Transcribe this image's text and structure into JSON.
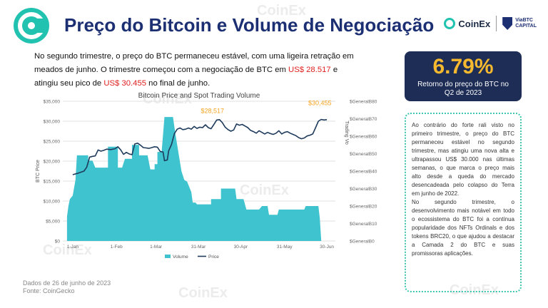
{
  "header": {
    "title": "Preço do Bitcoin e Volume de Negociação",
    "brand_coinex": "CoinEx",
    "brand_viabtc_line1": "ViaBTC",
    "brand_viabtc_line2": "CAPITAL"
  },
  "intro": {
    "part1": "No segundo trimestre, o preço do BTC permaneceu estável, com uma ligeira retração em meados de junho. O trimestre começou com a negociação de BTC em ",
    "low": "US$ 28.517",
    "part2": " e atingiu seu pico de ",
    "high": "US$ 30.455",
    "part3": " no final de junho."
  },
  "kpi": {
    "value": "6.79%",
    "label": "Retorno do preço do BTC no Q2 de 2023"
  },
  "side": {
    "para1": "Ao contrário do forte rali visto no primeiro trimestre, o preço do BTC permaneceu estável no segundo trimestre, mas atingiu uma nova alta e ultrapassou US$ 30.000 nas últimas semanas, o que marca o preço mais alto desde a queda do mercado desencadeada pelo colapso do Terra em junho de 2022.",
    "para2": "No segundo trimestre, o desenvolvimento mais notável em todo o ecossistema do BTC foi a contínua popularidade dos NFTs Ordinals e dos tokens BRC20, o que ajudou a destacar a Camada 2 do BTC e suas promissoras aplicações."
  },
  "footer": {
    "date": "Dados de 26 de junho de 2023",
    "source": "Fonte: CoinGecko"
  },
  "watermark": "CoinEx",
  "colors": {
    "title": "#1c2f73",
    "volume": "#3fc3cf",
    "price": "#1f3b5c",
    "annotation": "#f5a623",
    "kpi_bg": "#1d2d55",
    "kpi_value": "#f5b82e",
    "highlight": "#e02020",
    "side_border": "#3cc6b0"
  },
  "chart_data": {
    "type": "bar",
    "title": "Bitcoin Price and Spot Trading Volume",
    "ylabel": "BTC Price",
    "y2label": "Trading Vo",
    "ylim": [
      0,
      35000
    ],
    "y2lim": [
      0,
      80
    ],
    "yticks": [
      "$0",
      "$5,000",
      "$10,000",
      "$15,000",
      "$20,000",
      "$25,000",
      "$30,000",
      "$35,000"
    ],
    "y2ticks": [
      "$GeneralB0",
      "$GeneralB10",
      "$GeneralB20",
      "$GeneralB30",
      "$GeneralB40",
      "$GeneralB50",
      "$GeneralB60",
      "$GeneralB70",
      "$GeneralB80"
    ],
    "xrange": [
      -7,
      186
    ],
    "xticks": [
      {
        "label": "1-Jan",
        "day": 0
      },
      {
        "label": "1-Feb",
        "day": 31
      },
      {
        "label": "1-Mar",
        "day": 59
      },
      {
        "label": "31-Mar",
        "day": 89
      },
      {
        "label": "30-Apr",
        "day": 119
      },
      {
        "label": "31-May",
        "day": 150
      },
      {
        "label": "30-Jun",
        "day": 180
      }
    ],
    "legend": [
      "Volume",
      "Price"
    ],
    "legend_position": "bottom",
    "grid": true,
    "annotations": [
      {
        "text": "$30,455",
        "day": 175,
        "value": 30455
      },
      {
        "text": "$28,517",
        "day": 99,
        "value": 28517
      }
    ],
    "series": [
      {
        "name": "Volume",
        "axis": "right",
        "style": "area",
        "points": [
          [
            -4,
            0
          ],
          [
            -4,
            14
          ],
          [
            -3,
            20
          ],
          [
            -2,
            24
          ],
          [
            0,
            26
          ],
          [
            2,
            35
          ],
          [
            3,
            49
          ],
          [
            11,
            49
          ],
          [
            11,
            46
          ],
          [
            14,
            46
          ],
          [
            16,
            42
          ],
          [
            25,
            42
          ],
          [
            25,
            54
          ],
          [
            32,
            54
          ],
          [
            32,
            42
          ],
          [
            35,
            42
          ],
          [
            37,
            47
          ],
          [
            42,
            47
          ],
          [
            42,
            55
          ],
          [
            47,
            55
          ],
          [
            47,
            49
          ],
          [
            53,
            49
          ],
          [
            55,
            41
          ],
          [
            58,
            41
          ],
          [
            58,
            44
          ],
          [
            60,
            44
          ],
          [
            60,
            51
          ],
          [
            63,
            51
          ],
          [
            65,
            71
          ],
          [
            71,
            71
          ],
          [
            73,
            60
          ],
          [
            75,
            50
          ],
          [
            77,
            40
          ],
          [
            79,
            35
          ],
          [
            81,
            34
          ],
          [
            84,
            28
          ],
          [
            85,
            22
          ],
          [
            87,
            22
          ],
          [
            88,
            21
          ],
          [
            98,
            21
          ],
          [
            98,
            24
          ],
          [
            105,
            24
          ],
          [
            105,
            30
          ],
          [
            115,
            30
          ],
          [
            116,
            24
          ],
          [
            121,
            24
          ],
          [
            123,
            18
          ],
          [
            132,
            18
          ],
          [
            134,
            20
          ],
          [
            138,
            20
          ],
          [
            139,
            15
          ],
          [
            145,
            15
          ],
          [
            146,
            18
          ],
          [
            164,
            18
          ],
          [
            165,
            20
          ],
          [
            174,
            20
          ],
          [
            175,
            13
          ],
          [
            176,
            0
          ]
        ]
      },
      {
        "name": "Price",
        "axis": "left",
        "style": "line",
        "points": [
          [
            0,
            16600
          ],
          [
            4,
            17000
          ],
          [
            8,
            17500
          ],
          [
            10,
            18500
          ],
          [
            12,
            21000
          ],
          [
            14,
            21200
          ],
          [
            16,
            21300
          ],
          [
            18,
            22800
          ],
          [
            20,
            22500
          ],
          [
            22,
            22700
          ],
          [
            24,
            23000
          ],
          [
            27,
            22900
          ],
          [
            30,
            23100
          ],
          [
            32,
            23600
          ],
          [
            34,
            22800
          ],
          [
            36,
            21700
          ],
          [
            38,
            22200
          ],
          [
            40,
            21800
          ],
          [
            42,
            21600
          ],
          [
            44,
            24300
          ],
          [
            46,
            24500
          ],
          [
            48,
            24000
          ],
          [
            50,
            23400
          ],
          [
            52,
            23300
          ],
          [
            54,
            23200
          ],
          [
            56,
            23400
          ],
          [
            58,
            23600
          ],
          [
            60,
            23500
          ],
          [
            62,
            22400
          ],
          [
            64,
            22300
          ],
          [
            65,
            20100
          ],
          [
            67,
            20300
          ],
          [
            68,
            22600
          ],
          [
            70,
            24200
          ],
          [
            72,
            26900
          ],
          [
            74,
            28000
          ],
          [
            76,
            28300
          ],
          [
            78,
            27900
          ],
          [
            80,
            28000
          ],
          [
            82,
            28300
          ],
          [
            84,
            28000
          ],
          [
            86,
            28700
          ],
          [
            88,
            28200
          ],
          [
            90,
            28500
          ],
          [
            92,
            28400
          ],
          [
            94,
            29100
          ],
          [
            96,
            28400
          ],
          [
            98,
            28100
          ],
          [
            100,
            29200
          ],
          [
            102,
            30300
          ],
          [
            104,
            30400
          ],
          [
            106,
            29600
          ],
          [
            108,
            28500
          ],
          [
            110,
            27900
          ],
          [
            112,
            27500
          ],
          [
            114,
            27800
          ],
          [
            116,
            29300
          ],
          [
            118,
            29000
          ],
          [
            120,
            29200
          ],
          [
            122,
            28800
          ],
          [
            124,
            28400
          ],
          [
            126,
            27700
          ],
          [
            128,
            27400
          ],
          [
            130,
            27000
          ],
          [
            132,
            27600
          ],
          [
            134,
            27200
          ],
          [
            136,
            26800
          ],
          [
            138,
            27200
          ],
          [
            140,
            26900
          ],
          [
            142,
            26700
          ],
          [
            144,
            27000
          ],
          [
            146,
            27600
          ],
          [
            148,
            26800
          ],
          [
            150,
            27200
          ],
          [
            152,
            27400
          ],
          [
            154,
            27000
          ],
          [
            156,
            26700
          ],
          [
            158,
            26400
          ],
          [
            160,
            25900
          ],
          [
            162,
            25600
          ],
          [
            164,
            25800
          ],
          [
            166,
            26300
          ],
          [
            168,
            26500
          ],
          [
            170,
            26800
          ],
          [
            172,
            28400
          ],
          [
            174,
            30000
          ],
          [
            176,
            30455
          ],
          [
            178,
            30300
          ],
          [
            180,
            30400
          ]
        ]
      }
    ]
  }
}
